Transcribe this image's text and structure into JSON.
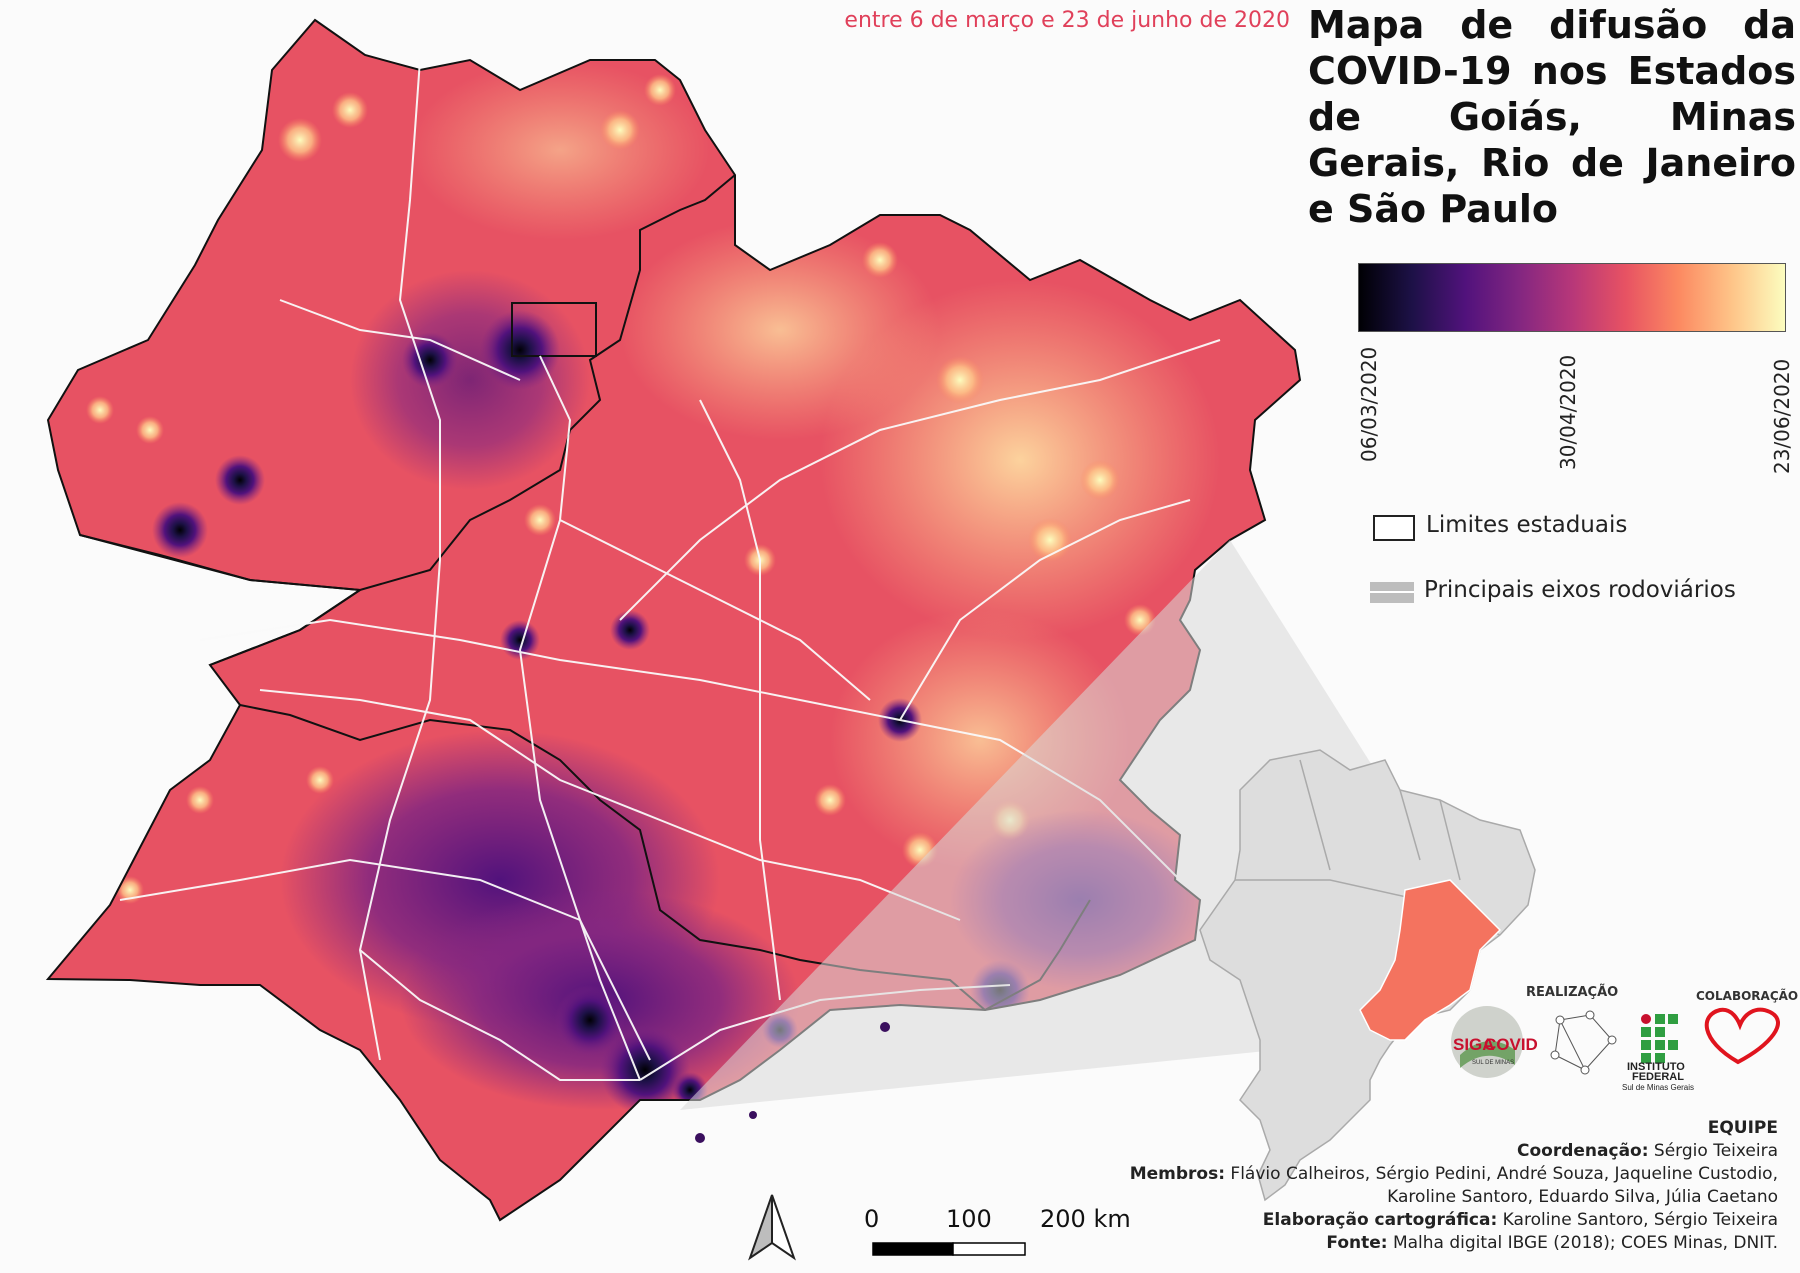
{
  "header": {
    "subtitle": "entre 6 de março e 23 de junho de 2020",
    "title": "Mapa de difusão da COVID-19 nos Estados de Goiás, Minas Gerais, Rio de Janeiro e São Paulo"
  },
  "colorbar": {
    "start_label": "06/03/2020",
    "mid_label": "30/04/2020",
    "end_label": "23/06/2020",
    "colormap": "magma",
    "colors": [
      "#000004",
      "#51127c",
      "#b73779",
      "#fc8961",
      "#fcfdbf"
    ]
  },
  "legend": {
    "state_limits": "Limites estaduais",
    "highways": "Principais eixos rodoviários"
  },
  "credits": {
    "realizacao": "REALIZAÇÃO",
    "colaboracao": "COLABORAÇÃO",
    "logo_siga_top": "SIGA",
    "logo_siga_main": "COVID",
    "logo_siga_sub": "SUL DE MINAS",
    "logo_if_line1": "INSTITUTO",
    "logo_if_line2": "FEDERAL",
    "logo_if_line3": "Sul de Minas Gerais"
  },
  "team": {
    "title": "EQUIPE",
    "coord_label": "Coordenação:",
    "coord_value": " Sérgio Teixeira",
    "members_label": "Membros:",
    "members_value_1": " Flávio Calheiros, Sérgio Pedini, André Souza, Jaqueline Custodio,",
    "members_value_2": "Karoline Santoro, Eduardo Silva, Júlia Caetano",
    "cartography_label": "Elaboração cartográfica:",
    "cartography_value": " Karoline Santoro, Sérgio Teixeira",
    "source_label": "Fonte:",
    "source_value": " Malha digital IBGE (2018); COES Minas, DNIT."
  },
  "scale_bar": {
    "tick_0": "0",
    "tick_1": "100",
    "tick_2": "200 km"
  },
  "inset": {
    "highlight_color": "#f4735f",
    "base_color": "#dddddd"
  }
}
